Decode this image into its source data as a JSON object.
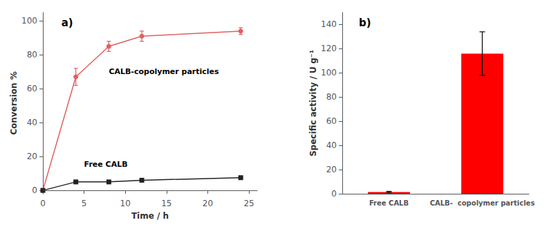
{
  "chart_data": [
    {
      "type": "line",
      "title": "a)",
      "xlabel": "Time / h",
      "ylabel": "Conversion %",
      "x": [
        0,
        4,
        8,
        12,
        24
      ],
      "series": [
        {
          "color": "#e06060",
          "marker": "circle",
          "values": [
            0,
            67,
            85,
            91,
            94
          ],
          "errors": [
            0.01,
            5,
            3,
            3,
            2
          ]
        },
        {
          "color": "#222222",
          "marker": "square",
          "values": [
            0,
            5,
            5,
            6,
            7.5
          ],
          "errors": [
            0.01,
            0.3,
            0.3,
            0.3,
            0.3
          ]
        }
      ],
      "xlim": [
        0,
        26
      ],
      "ylim": [
        -2,
        105
      ],
      "xticks": [
        0,
        5,
        10,
        15,
        20,
        25
      ],
      "yticks": [
        0,
        20,
        40,
        60,
        80,
        100
      ],
      "grid": false,
      "annotations": [
        {
          "text": "CALB-copolymer particles",
          "x": 8.0,
          "y": 68
        },
        {
          "text": "Free CALB",
          "x": 5.0,
          "y": 13
        }
      ]
    },
    {
      "type": "bar",
      "title": "b)",
      "ylabel": "Specific activity / U g⁻¹",
      "categories": [
        "Free CALB",
        "CALB-  copolymer particles"
      ],
      "values": [
        1.5,
        116
      ],
      "errors": [
        0.5,
        18
      ],
      "color": "#ff0000",
      "ylim": [
        0,
        150
      ],
      "yticks": [
        0,
        20,
        40,
        60,
        80,
        100,
        120,
        140
      ],
      "grid": false
    }
  ]
}
